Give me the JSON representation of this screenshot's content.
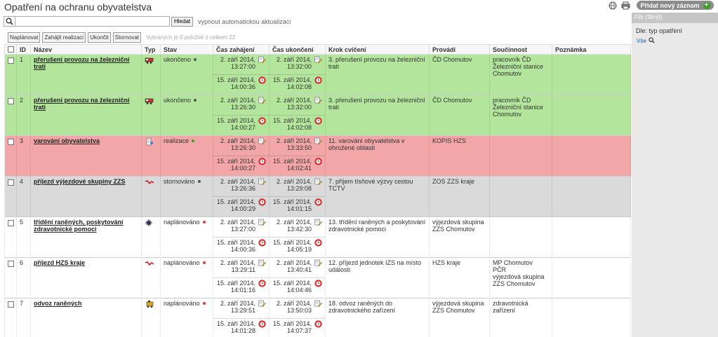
{
  "title": "Opatření na ochranu obyvatelstva",
  "add_button": "Přidat nový záznam",
  "search": {
    "value": "",
    "button": "Hledat",
    "auto_refresh": "vypnout automatickou aktualizaci"
  },
  "actions": {
    "plan": "Naplánovat",
    "start": "Zahájit realizaci",
    "end": "Ukončit",
    "cancel": "Stornovat",
    "selection_info": "Vybraných je 0 položek z celkem 22"
  },
  "columns": {
    "id": "ID",
    "name": "Název",
    "type": "Typ",
    "status": "Stav",
    "start": "Čas zahájení",
    "end": "Čas ukončení",
    "step": "Krok cvičení",
    "performs": "Provádí",
    "cooperation": "Součinnost",
    "note": "Poznámka"
  },
  "rows": [
    {
      "id": "1",
      "name": "přerušení provozu na železniční trati",
      "status": "ukončeno",
      "start_planned": "2. září 2014, 13:27:00",
      "start_actual": "15. září 2014, 14:00:36",
      "end_planned": "2. září 2014, 13:32:00",
      "end_actual": "15. září 2014, 14:02:08",
      "step": "3. přerušení provozu na železniční trati",
      "performs": "ČD Chomutov",
      "cooperation": "pracovník ČD\nŽelezniční stanice\nChomutov",
      "note": ""
    },
    {
      "id": "2",
      "name": "přerušení provozu na železniční trati",
      "status": "ukončeno",
      "start_planned": "2. září 2014, 13:26:30",
      "start_actual": "15. září 2014, 14:00:27",
      "end_planned": "2. září 2014, 13:32:00",
      "end_actual": "15. září 2014, 14:02:08",
      "step": "3. přerušení provozu na železniční trati",
      "performs": "ČD Chomutov",
      "cooperation": "pracovník ČD\nŽelezniční stanice\nChomutov",
      "note": ""
    },
    {
      "id": "3",
      "name": "varování obyvatelstva",
      "status": "realizace",
      "start_planned": "2. září 2014, 13:26:30",
      "start_actual": "15. září 2014, 14:00:27",
      "end_planned": "2. září 2014, 13:33:50",
      "end_actual": "15. září 2014, 14:02:41",
      "step": "11. varování obyvatelstva v ohrožené oblasti",
      "performs": "KOPIS HZS",
      "cooperation": "",
      "note": ""
    },
    {
      "id": "4",
      "name": "příjezd výjezdové skupiny ZZS",
      "status": "stornováno",
      "start_planned": "2. září 2014, 13:26:36",
      "start_actual": "15. září 2014, 14:00:29",
      "end_planned": "2. září 2014, 13:29:08",
      "end_actual": "15. září 2014, 14:01:15",
      "step": "7. příjem tísňové výzvy cestou TCTV",
      "performs": "ZOS ZZS kraje",
      "cooperation": "",
      "note": ""
    },
    {
      "id": "5",
      "name": "třídění raněných, poskytování zdravotnické pomoci",
      "status": "naplánováno",
      "start_planned": "2. září 2014, 13:27:00",
      "start_actual": "15. září 2014, 14:00:36",
      "end_planned": "2. září 2014, 13:42:30",
      "end_actual": "15. září 2014, 14:05:19",
      "step": "13. třídění raněných a poskytování zdravotnické pomoci",
      "performs": "výjezdová skupina ZZS Chomutov",
      "cooperation": "",
      "note": ""
    },
    {
      "id": "6",
      "name": "příjezd HZS kraje",
      "status": "naplánováno",
      "start_planned": "2. září 2014, 13:29:11",
      "start_actual": "15. září 2014, 14:01:16",
      "end_planned": "2. září 2014, 13:40:41",
      "end_actual": "15. září 2014, 14:04:46",
      "step": "12. příjezd jednotek IZS na místo události",
      "performs": "HZS kraje",
      "cooperation": "MP Chomutov\nPČR\nvýjezdová skupina\nZZS Chomutov",
      "note": ""
    },
    {
      "id": "7",
      "name": "odvoz raněných",
      "status": "naplánováno",
      "start_planned": "2. září 2014, 13:29:51",
      "start_actual": "15. září 2014, 14:01:28",
      "end_planned": "2. září 2014, 13:50:03",
      "end_actual": "15. září 2014, 14:07:37",
      "step": "18. odvoz raněných do zdravotnického zařízení",
      "performs": "výjezdová skupina ZZS Chomutov",
      "cooperation": "zdravotnická\nzařízení",
      "note": ""
    }
  ],
  "filter": {
    "header": "Filtr (Skrýt)",
    "label": "Dle: typ opatření",
    "all": "Vše"
  },
  "colors": {
    "green_row": "#b3e59c",
    "red_row": "#f2a6a7",
    "gray_row": "#dadada",
    "add_plus": "#3aa31f"
  },
  "icons": {
    "globe": "globe-icon",
    "print": "printer-icon",
    "search": "search-icon",
    "edit": "pencil-icon",
    "clock": "clock-icon"
  }
}
